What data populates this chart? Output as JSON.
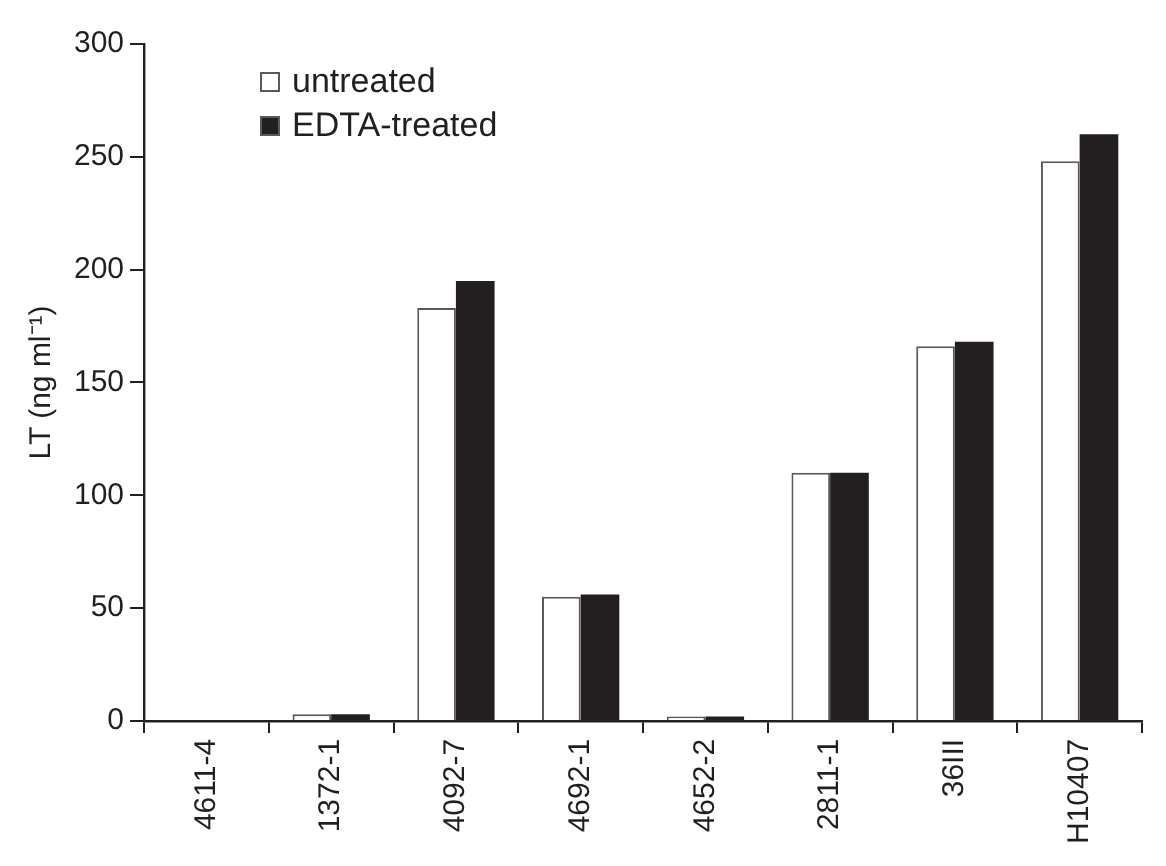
{
  "chart_data": {
    "type": "bar",
    "ylabel": "LT (ng ml⁻¹)",
    "categories": [
      "4611-4",
      "1372-1",
      "4092-7",
      "4692-1",
      "4652-2",
      "2811-1",
      "36III",
      "H10407"
    ],
    "series": [
      {
        "name": "untreated",
        "color": "#ffffff",
        "values": [
          0,
          3,
          183,
          55,
          2,
          110,
          166,
          248
        ]
      },
      {
        "name": "EDTA-treated",
        "color": "#231f20",
        "values": [
          0,
          3,
          195,
          56,
          2,
          110,
          168,
          260
        ]
      }
    ],
    "ylim": [
      0,
      300
    ],
    "yticks": [
      0,
      50,
      100,
      150,
      200,
      250,
      300
    ],
    "grid": false,
    "legend": "top left"
  }
}
